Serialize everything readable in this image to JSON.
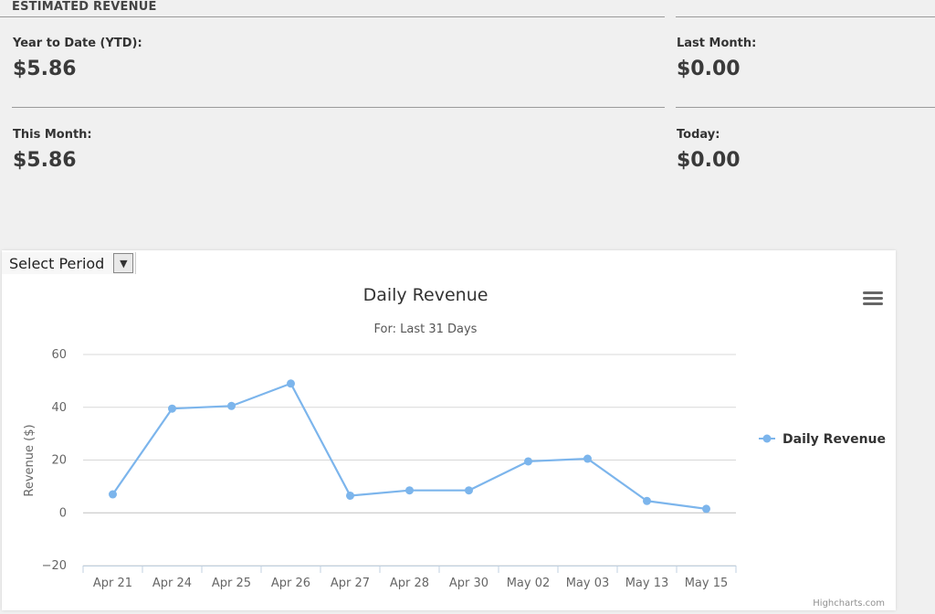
{
  "estimated_revenue": {
    "section_title": "ESTIMATED REVENUE",
    "ytd_label": "Year to Date (YTD):",
    "ytd_value": "$5.86",
    "last_month_label": "Last Month:",
    "last_month_value": "$0.00",
    "this_month_label": "This Month:",
    "this_month_value": "$5.86",
    "today_label": "Today:",
    "today_value": "$0.00"
  },
  "period_select": {
    "label": "Select Period",
    "arrow_icon": "chevron-down-icon"
  },
  "chart_menu": {
    "icon": "hamburger-menu-icon"
  },
  "chart_data": {
    "type": "line",
    "title": "Daily Revenue",
    "subtitle": "For: Last 31 Days",
    "ylabel": "Revenue ($)",
    "xlabel": "",
    "ylim": [
      -20,
      60
    ],
    "yticks": [
      -20,
      0,
      20,
      40,
      60
    ],
    "categories": [
      "Apr 21",
      "Apr 24",
      "Apr 25",
      "Apr 26",
      "Apr 27",
      "Apr 28",
      "Apr 30",
      "May 02",
      "May 03",
      "May 13",
      "May 15"
    ],
    "series": [
      {
        "name": "Daily Revenue",
        "color": "#7cb5ec",
        "values": [
          7,
          39.5,
          40.5,
          49,
          6.5,
          8.5,
          8.5,
          19.5,
          20.5,
          4.5,
          1.5
        ]
      }
    ],
    "legend_position": "right",
    "grid": true,
    "credits": "Highcharts.com"
  }
}
